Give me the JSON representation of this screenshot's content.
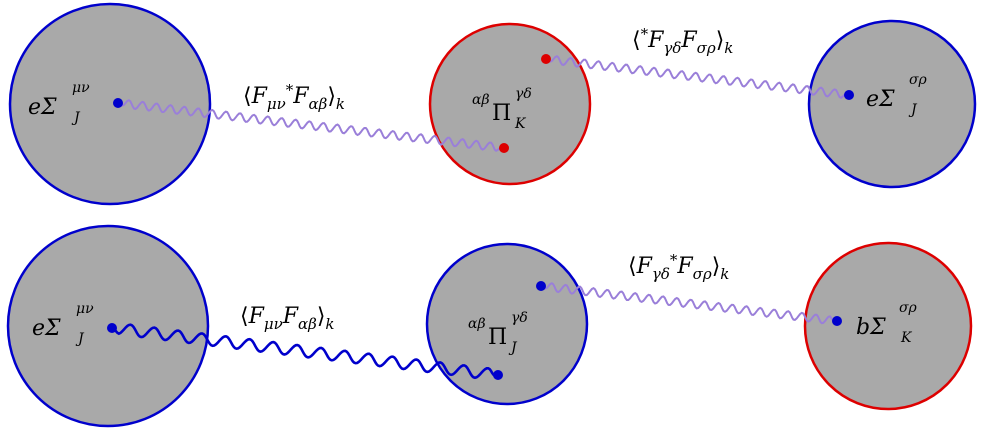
{
  "colors": {
    "fill": "#a9a9a9",
    "blue": "#0000cc",
    "red": "#dd0000",
    "purple": "#9a7fd9",
    "navy": "#0000cc",
    "text": "#000000"
  },
  "rows": [
    {
      "circles": [
        {
          "id": "c1",
          "stroke": "blue"
        },
        {
          "id": "c2",
          "stroke": "red"
        },
        {
          "id": "c3",
          "stroke": "blue"
        }
      ],
      "labels": {
        "left": {
          "main": "eΣ",
          "sup": "μν",
          "sub": "J"
        },
        "center": {
          "pre": "αβ",
          "main": "Π",
          "sup": "γδ",
          "sub": "K"
        },
        "right": {
          "main": "eΣ",
          "sup": "σρ",
          "sub": "J"
        }
      },
      "propagators": {
        "first": "⟨F_{μν} *F_{αβ}⟩_k",
        "second": "⟨*F_{γδ} F_{σρ}⟩_k"
      }
    },
    {
      "circles": [
        {
          "id": "c4",
          "stroke": "blue"
        },
        {
          "id": "c5",
          "stroke": "blue"
        },
        {
          "id": "c6",
          "stroke": "red"
        }
      ],
      "labels": {
        "left": {
          "main": "eΣ",
          "sup": "μν",
          "sub": "J"
        },
        "center": {
          "pre": "αβ",
          "main": "Π",
          "sup": "γδ",
          "sub": "J"
        },
        "right": {
          "main": "bΣ",
          "sup": "σρ",
          "sub": "K"
        }
      },
      "propagators": {
        "first": "⟨F_{μν} F_{αβ}⟩_k",
        "second": "⟨F_{γδ} *F_{σρ}⟩_k"
      }
    }
  ],
  "prop_parts": {
    "r1_first": {
      "open": "⟨",
      "f1": "F",
      "s1": "μν",
      "star": "*",
      "f2": "F",
      "s2": "αβ",
      "close": "⟩",
      "k": "k"
    },
    "r1_second": {
      "open": "⟨",
      "star": "*",
      "f1": "F",
      "s1": "γδ",
      "f2": "F",
      "s2": "σρ",
      "close": "⟩",
      "k": "k"
    },
    "r2_first": {
      "open": "⟨",
      "f1": "F",
      "s1": "μν",
      "f2": "F",
      "s2": "αβ",
      "close": "⟩",
      "k": "k"
    },
    "r2_second": {
      "open": "⟨",
      "f1": "F",
      "s1": "γδ",
      "star": "*",
      "f2": "F",
      "s2": "σρ",
      "close": "⟩",
      "k": "k"
    }
  }
}
